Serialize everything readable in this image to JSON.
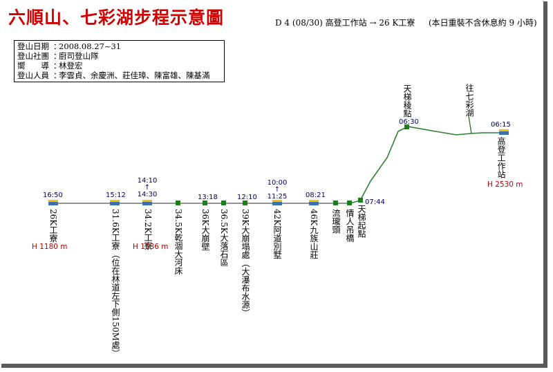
{
  "title": "六順山、七彩湖步程示意圖",
  "subtitle": "D 4 (08/30) 高登工作站 → 26 K工寮",
  "subnote": "(本日重裝不含休息約 9 小時)",
  "info": [
    {
      "label": "登山日期",
      "value": "2008.08.27~31"
    },
    {
      "label": "登山社團",
      "value": "廚司登山隊"
    },
    {
      "label": "嚮　　導",
      "value": "林登宏"
    },
    {
      "label": "登山人員",
      "value": "李雲貞、余慶洲、莊佳璋、陳富雄、陳基滿"
    }
  ],
  "stations": {
    "k26": {
      "time": "16:50",
      "label": "26K工寮",
      "elev": "H 1180 m"
    },
    "k316": {
      "time": "15:12",
      "label": "31.6K工寮（位在林道左下側150M處）"
    },
    "k342": {
      "time_a": "14:10",
      "time_sep": "↑",
      "time_b": "14:30",
      "label": "34.2K工寮",
      "elev": "H 1536 m"
    },
    "k345": {
      "label": "34.5K乾涸大河床"
    },
    "k36": {
      "time": "13:18",
      "label": "36K大崩壁"
    },
    "k365": {
      "label": "36.5K大落石區"
    },
    "k39": {
      "time": "12:10",
      "label": "39K大崩塌處（大瀑布水源）"
    },
    "k42": {
      "time_a": "10:00",
      "time_sep": "↑",
      "time_b": "11:25",
      "label": "42K阿道別墅"
    },
    "k46": {
      "time": "08:21",
      "label": "46K九族山莊"
    },
    "liulong": {
      "label": "流瓏頭"
    },
    "bridge": {
      "label": "情人吊橋"
    },
    "ladder_start": {
      "time": "07:44",
      "label": "天梯起點"
    },
    "ladder_ridge": {
      "time": "06:30",
      "label": "天梯稜點"
    },
    "to_lake": {
      "label": "往七彩湖"
    },
    "gaodeng": {
      "time": "06:15",
      "label": "高登工作站",
      "elev": "H 2530 m"
    }
  },
  "colors": {
    "title": "#d00000",
    "route": "#2e7d32",
    "baseline": "#555555",
    "elev": "#b00000",
    "time": "#000060"
  }
}
